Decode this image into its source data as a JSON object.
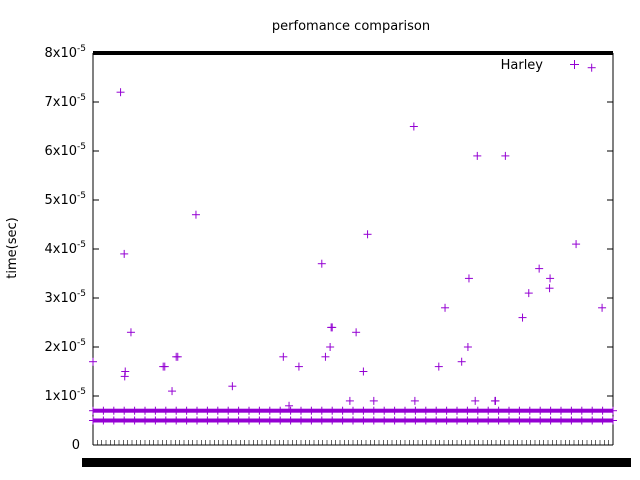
{
  "chart_data": {
    "type": "scatter",
    "title": "perfomance comparison",
    "xlabel": "",
    "ylabel": "time(sec)",
    "ylim": [
      0,
      8e-05
    ],
    "xlim": [
      0,
      1000
    ],
    "ytick_labels": [
      {
        "value": 0,
        "base": "0",
        "exp": ""
      },
      {
        "value": 1e-05,
        "base": "1x10",
        "exp": "-5"
      },
      {
        "value": 2e-05,
        "base": "2x10",
        "exp": "-5"
      },
      {
        "value": 3e-05,
        "base": "3x10",
        "exp": "-5"
      },
      {
        "value": 4e-05,
        "base": "4x10",
        "exp": "-5"
      },
      {
        "value": 5e-05,
        "base": "5x10",
        "exp": "-5"
      },
      {
        "value": 6e-05,
        "base": "6x10",
        "exp": "-5"
      },
      {
        "value": 7e-05,
        "base": "7x10",
        "exp": "-5"
      },
      {
        "value": 8e-05,
        "base": "8x10",
        "exp": "-5"
      }
    ],
    "xtick_count": 120,
    "grid": false,
    "legend_position": "top-right",
    "series": [
      {
        "name": "Harley",
        "color": "#9400d3",
        "marker": "plus",
        "baseline_values": [
          5e-06,
          7e-06
        ],
        "baseline_x_range": [
          0,
          1000
        ],
        "baseline_step": 4,
        "x": [
          0,
          53,
          60,
          61,
          62,
          73,
          135,
          138,
          152,
          160,
          163,
          198,
          268,
          366,
          377,
          396,
          440,
          447,
          456,
          458,
          460,
          494,
          506,
          520,
          528,
          540,
          617,
          619,
          665,
          677,
          709,
          721,
          723,
          735,
          739,
          773,
          774,
          793,
          826,
          838,
          858,
          878,
          879,
          929,
          959,
          979
        ],
        "y": [
          1.7e-05,
          7.2e-05,
          3.9e-05,
          1.4e-05,
          1.5e-05,
          2.3e-05,
          1.6e-05,
          1.6e-05,
          1.1e-05,
          1.8e-05,
          1.8e-05,
          4.7e-05,
          1.2e-05,
          1.8e-05,
          8e-06,
          1.6e-05,
          3.7e-05,
          1.8e-05,
          2e-05,
          2.4e-05,
          2.4e-05,
          9e-06,
          2.3e-05,
          1.5e-05,
          4.3e-05,
          9e-06,
          6.5e-05,
          9e-06,
          1.6e-05,
          2.8e-05,
          1.7e-05,
          2e-05,
          3.4e-05,
          9e-06,
          5.9e-05,
          9e-06,
          9e-06,
          5.9e-05,
          2.6e-05,
          3.1e-05,
          3.6e-05,
          3.2e-05,
          3.4e-05,
          4.1e-05,
          7.7e-05,
          2.8e-05
        ]
      }
    ]
  }
}
